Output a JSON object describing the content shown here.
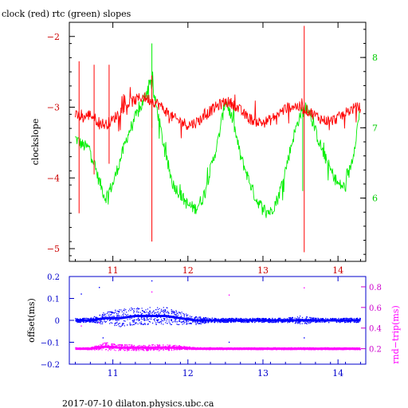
{
  "title": "clock (red) rtc (green) slopes",
  "footer": "2017-07-10  dilaton.physics.ubc.ca",
  "colors": {
    "clock": "#ff0000",
    "rtc": "#00ee00",
    "offset": "#0000ff",
    "rndtrip": "#ff00ff",
    "axis_top_left": "#cc0000",
    "axis_top_right": "#00cc00",
    "axis_bottom_left": "#0000cc",
    "axis_bottom_right": "#cc00cc"
  },
  "chart_data": [
    {
      "type": "line",
      "ylabel": "clockslope",
      "xlim": [
        10.42,
        14.37
      ],
      "ylim": [
        -5.18,
        -1.8
      ],
      "y2lim": [
        5.1,
        8.5
      ],
      "x_ticks": [
        11,
        12,
        13,
        14
      ],
      "y_ticks": [
        -2,
        -3,
        -4,
        -5
      ],
      "y2_ticks": [
        6,
        7,
        8
      ],
      "series": [
        {
          "name": "clock (red)",
          "axis": "left",
          "x": [
            10.5,
            10.6,
            10.7,
            10.8,
            10.9,
            11.0,
            11.1,
            11.2,
            11.3,
            11.4,
            11.5,
            11.6,
            11.7,
            11.8,
            11.9,
            12.0,
            12.1,
            12.2,
            12.3,
            12.4,
            12.5,
            12.6,
            12.7,
            12.8,
            12.9,
            13.0,
            13.1,
            13.2,
            13.3,
            13.4,
            13.5,
            13.6,
            13.7,
            13.8,
            13.9,
            14.0,
            14.1,
            14.2,
            14.3
          ],
          "values": [
            -3.12,
            -3.15,
            -3.1,
            -3.2,
            -3.25,
            -3.18,
            -3.05,
            -2.95,
            -2.9,
            -2.85,
            -2.9,
            -2.95,
            -3.05,
            -3.15,
            -3.2,
            -3.25,
            -3.22,
            -3.15,
            -3.05,
            -2.98,
            -2.92,
            -2.95,
            -3.05,
            -3.15,
            -3.2,
            -3.22,
            -3.18,
            -3.1,
            -3.02,
            -2.98,
            -3.0,
            -3.05,
            -3.12,
            -3.18,
            -3.2,
            -3.15,
            -3.08,
            -3.02,
            -3.0
          ],
          "spikes": [
            {
              "x": 10.55,
              "y_min": -4.5,
              "y_max": -2.35
            },
            {
              "x": 10.75,
              "y_min": -3.95,
              "y_max": -2.4
            },
            {
              "x": 10.95,
              "y_min": -3.8,
              "y_max": -2.4
            },
            {
              "x": 11.52,
              "y_min": -4.9,
              "y_max": -2.55
            },
            {
              "x": 13.55,
              "y_min": -5.05,
              "y_max": -1.85
            }
          ]
        },
        {
          "name": "rtc (green)",
          "axis": "right",
          "x": [
            10.5,
            10.6,
            10.7,
            10.8,
            10.9,
            11.0,
            11.1,
            11.2,
            11.3,
            11.4,
            11.5,
            11.6,
            11.7,
            11.8,
            11.9,
            12.0,
            12.1,
            12.2,
            12.3,
            12.4,
            12.5,
            12.6,
            12.7,
            12.8,
            12.9,
            13.0,
            13.1,
            13.2,
            13.3,
            13.4,
            13.5,
            13.6,
            13.7,
            13.8,
            13.9,
            14.0,
            14.1,
            14.2,
            14.3
          ],
          "values": [
            6.85,
            6.75,
            6.7,
            6.3,
            6.0,
            6.2,
            6.55,
            6.9,
            7.15,
            7.35,
            7.7,
            7.2,
            6.6,
            6.2,
            6.05,
            5.9,
            5.85,
            6.0,
            6.4,
            6.8,
            7.4,
            7.1,
            6.6,
            6.3,
            6.0,
            5.85,
            5.8,
            6.0,
            6.4,
            6.85,
            7.2,
            7.3,
            6.95,
            6.65,
            6.4,
            6.2,
            6.15,
            6.6,
            7.3
          ],
          "spikes": [
            {
              "x": 11.52,
              "y_min": 7.0,
              "y_max": 8.2
            },
            {
              "x": 13.53,
              "y_min": 6.1,
              "y_max": 7.3
            }
          ]
        }
      ]
    },
    {
      "type": "scatter",
      "ylabel": "offset(ms)",
      "y2label": "rnd−trip(ms)",
      "xlim": [
        10.42,
        14.37
      ],
      "ylim": [
        -0.2,
        0.2
      ],
      "y2lim": [
        0.05,
        0.9
      ],
      "x_ticks": [
        11,
        12,
        13,
        14
      ],
      "y_ticks": [
        0.2,
        0.1,
        0,
        -0.1,
        -0.2
      ],
      "y_tick_labels": [
        "0.2",
        "0.1",
        "0",
        "−0.1",
        "−0.2"
      ],
      "y2_ticks": [
        0.2,
        0.4,
        0.6,
        0.8
      ],
      "series": [
        {
          "name": "offset(ms)",
          "axis": "left",
          "x": [
            10.5,
            10.7,
            10.9,
            11.1,
            11.3,
            11.5,
            11.7,
            11.9,
            12.1,
            12.3,
            12.5,
            12.7,
            12.9,
            13.1,
            13.3,
            13.5,
            13.7,
            13.9,
            14.1,
            14.3
          ],
          "values": [
            0.0,
            0.0,
            0.01,
            0.01,
            0.02,
            0.02,
            0.02,
            0.01,
            0.0,
            0.0,
            0.0,
            0.0,
            0.0,
            0.0,
            0.0,
            0.0,
            0.0,
            0.0,
            0.0,
            0.0
          ],
          "spread": [
            0.01,
            0.01,
            0.03,
            0.04,
            0.04,
            0.04,
            0.04,
            0.03,
            0.02,
            0.01,
            0.01,
            0.01,
            0.01,
            0.01,
            0.01,
            0.02,
            0.01,
            0.01,
            0.01,
            0.01
          ],
          "outliers": [
            [
              10.58,
              0.12
            ],
            [
              10.82,
              0.15
            ],
            [
              11.52,
              0.18
            ],
            [
              12.55,
              -0.1
            ],
            [
              13.55,
              -0.08
            ],
            [
              10.87,
              -0.08
            ]
          ]
        },
        {
          "name": "rnd−trip(ms)",
          "axis": "right",
          "x": [
            10.5,
            10.7,
            10.9,
            11.1,
            11.3,
            11.5,
            11.7,
            11.9,
            12.1,
            12.3,
            12.5,
            12.7,
            12.9,
            13.1,
            13.3,
            13.5,
            13.7,
            13.9,
            14.1,
            14.3
          ],
          "values": [
            0.2,
            0.2,
            0.22,
            0.21,
            0.21,
            0.21,
            0.21,
            0.21,
            0.2,
            0.2,
            0.2,
            0.2,
            0.2,
            0.2,
            0.2,
            0.2,
            0.2,
            0.2,
            0.2,
            0.2
          ],
          "spread": [
            0.01,
            0.01,
            0.04,
            0.03,
            0.03,
            0.03,
            0.03,
            0.02,
            0.01,
            0.01,
            0.01,
            0.01,
            0.01,
            0.01,
            0.01,
            0.01,
            0.01,
            0.01,
            0.01,
            0.01
          ],
          "outliers": [
            [
              10.58,
              0.42
            ],
            [
              10.82,
              0.45
            ],
            [
              11.52,
              0.75
            ],
            [
              12.55,
              0.72
            ],
            [
              13.55,
              0.79
            ]
          ]
        }
      ]
    }
  ]
}
